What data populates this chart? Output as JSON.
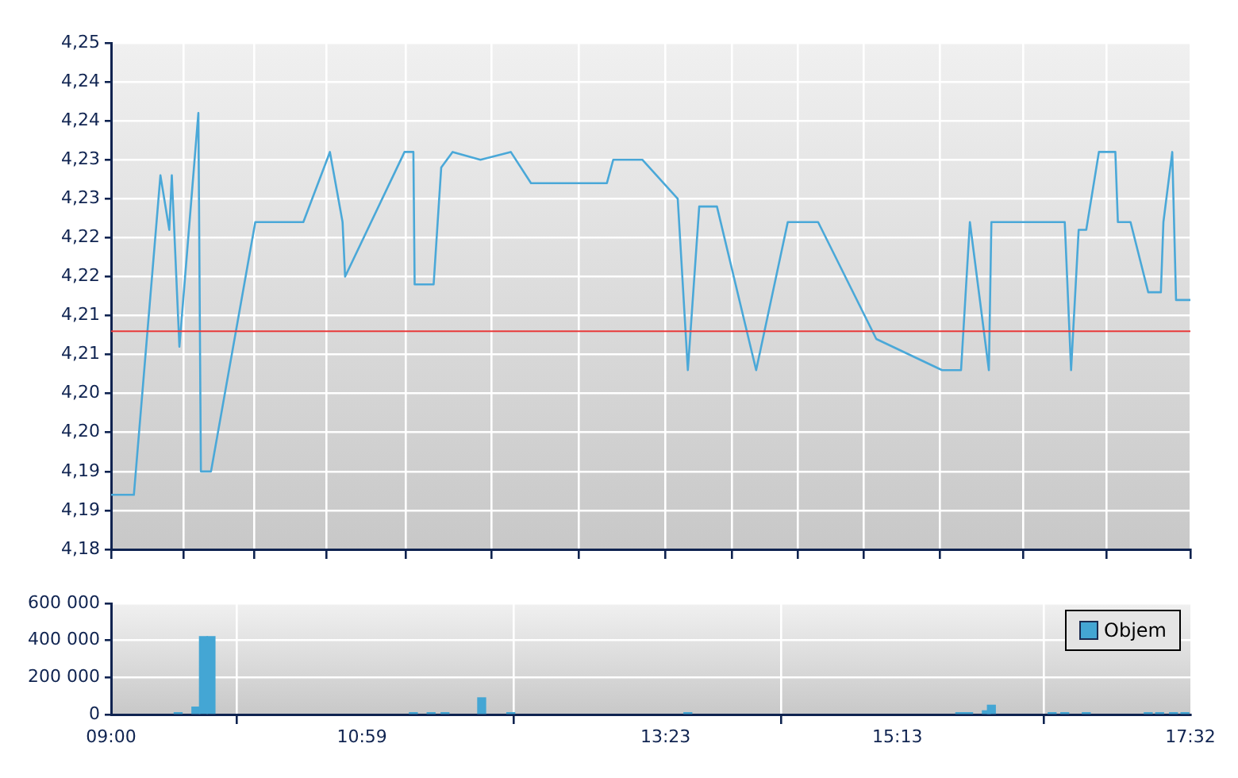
{
  "chart_data": [
    {
      "type": "line",
      "xlim": [
        9,
        17.5333
      ],
      "xticks": [
        {
          "value": 9,
          "label": null
        },
        {
          "value": 9.57,
          "label": null
        },
        {
          "value": 10.13,
          "label": null
        },
        {
          "value": 10.7,
          "label": null
        },
        {
          "value": 11.33,
          "label": null
        },
        {
          "value": 12.01,
          "label": null
        },
        {
          "value": 12.7,
          "label": null
        },
        {
          "value": 13.3833,
          "label": null
        },
        {
          "value": 13.91,
          "label": null
        },
        {
          "value": 14.43,
          "label": null
        },
        {
          "value": 14.95,
          "label": null
        },
        {
          "value": 15.55,
          "label": null
        },
        {
          "value": 16.21,
          "label": null
        },
        {
          "value": 16.87,
          "label": null
        },
        {
          "value": 17.5333,
          "label": null
        }
      ],
      "ylim": [
        4.18,
        4.245
      ],
      "yticks": [
        {
          "value": 4.18,
          "label": "4,18"
        },
        {
          "value": 4.185,
          "label": "4,19"
        },
        {
          "value": 4.19,
          "label": "4,19"
        },
        {
          "value": 4.195,
          "label": "4,20"
        },
        {
          "value": 4.2,
          "label": "4,20"
        },
        {
          "value": 4.205,
          "label": "4,21"
        },
        {
          "value": 4.21,
          "label": "4,21"
        },
        {
          "value": 4.215,
          "label": "4,22"
        },
        {
          "value": 4.22,
          "label": "4,22"
        },
        {
          "value": 4.225,
          "label": "4,23"
        },
        {
          "value": 4.23,
          "label": "4,23"
        },
        {
          "value": 4.235,
          "label": "4,24"
        },
        {
          "value": 4.24,
          "label": "4,24"
        },
        {
          "value": 4.245,
          "label": "4,25"
        }
      ],
      "grid": true,
      "tick_labels": "y",
      "line_style": "solid",
      "series": [
        {
          "color": "#4aa8d8",
          "x": [
            9,
            9.18,
            9.39,
            9.46,
            9.48,
            9.54,
            9.69,
            9.71,
            9.79,
            10.14,
            10.52,
            10.73,
            10.83,
            10.85,
            11.32,
            11.39,
            11.4,
            11.55,
            11.61,
            11.7,
            11.92,
            12.16,
            12.32,
            12.92,
            12.97,
            13.2,
            13.48,
            13.56,
            13.65,
            13.79,
            14.1,
            14.35,
            14.59,
            15.05,
            15.57,
            15.72,
            15.79,
            15.94,
            15.96,
            16.54,
            16.59,
            16.65,
            16.71,
            16.81,
            16.94,
            16.96,
            17.06,
            17.2,
            17.3,
            17.32,
            17.39,
            17.42,
            17.5333
          ],
          "values": [
            4.187,
            4.187,
            4.228,
            4.221,
            4.228,
            4.206,
            4.236,
            4.19,
            4.19,
            4.222,
            4.222,
            4.231,
            4.222,
            4.215,
            4.231,
            4.231,
            4.214,
            4.214,
            4.229,
            4.231,
            4.23,
            4.231,
            4.227,
            4.227,
            4.23,
            4.23,
            4.225,
            4.203,
            4.224,
            4.224,
            4.203,
            4.222,
            4.222,
            4.207,
            4.203,
            4.203,
            4.222,
            4.203,
            4.222,
            4.222,
            4.203,
            4.221,
            4.221,
            4.231,
            4.231,
            4.222,
            4.222,
            4.213,
            4.213,
            4.222,
            4.231,
            4.212,
            4.212
          ]
        }
      ],
      "ref_lines": [
        {
          "axis": "y",
          "value": 4.208,
          "color": "#e83a3a"
        }
      ]
    },
    {
      "type": "bar",
      "xlim": [
        9,
        17.5333
      ],
      "xticks": [
        {
          "value": 9,
          "label": "09:00"
        },
        {
          "value": 10.9833,
          "label": "10:59"
        },
        {
          "value": 13.3833,
          "label": "13:23"
        },
        {
          "value": 15.2167,
          "label": "15:13"
        },
        {
          "value": 17.5333,
          "label": "17:32"
        }
      ],
      "ylim": [
        0,
        600000
      ],
      "yticks": [
        {
          "value": 0,
          "label": "0"
        },
        {
          "value": 200000,
          "label": "200 000"
        },
        {
          "value": 400000,
          "label": "400 000"
        },
        {
          "value": 600000,
          "label": "600 000"
        }
      ],
      "grid": true,
      "legend": "top right",
      "series": [
        {
          "name": "Objem",
          "color": "#44a6d4",
          "x": [
            9.53,
            9.67,
            9.73,
            9.79,
            11.39,
            11.53,
            11.64,
            11.93,
            12.16,
            13.56,
            15.71,
            15.78,
            15.92,
            15.96,
            16.44,
            16.54,
            16.71,
            17.2,
            17.29,
            17.4,
            17.49
          ],
          "values": [
            10000,
            40000,
            420000,
            420000,
            10000,
            10000,
            10000,
            90000,
            10000,
            10000,
            10000,
            10000,
            20000,
            50000,
            10000,
            10000,
            10000,
            10000,
            10000,
            10000,
            10000
          ]
        }
      ]
    }
  ]
}
